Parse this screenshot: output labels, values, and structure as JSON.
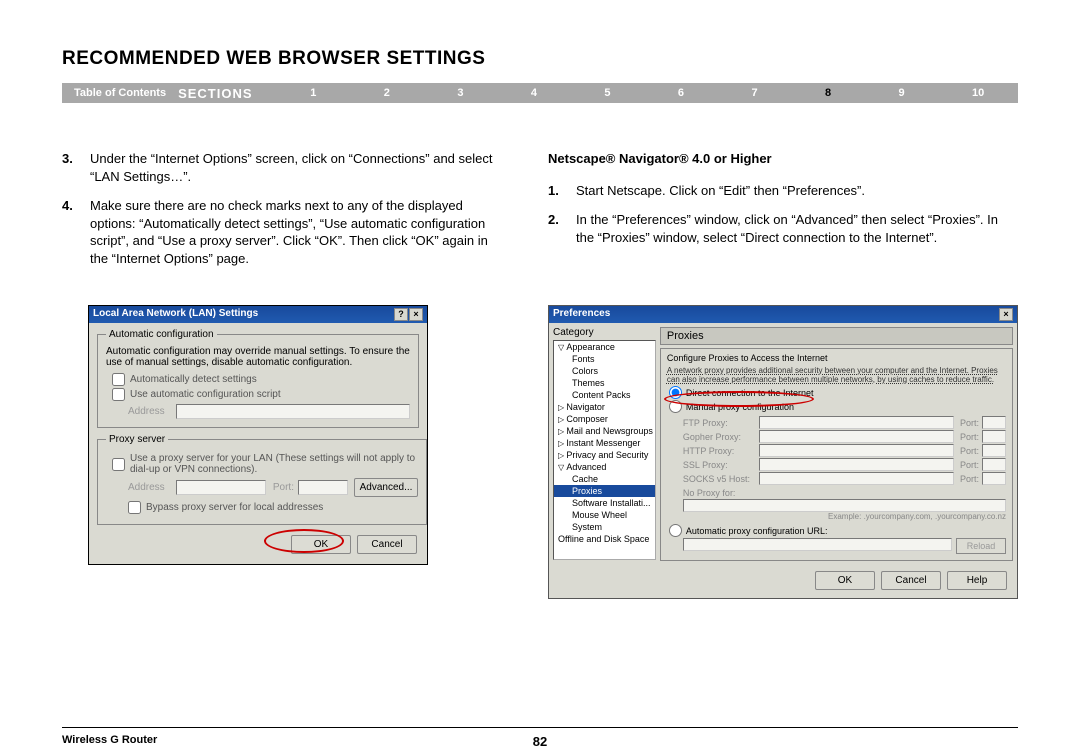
{
  "title": "RECOMMENDED WEB BROWSER SETTINGS",
  "nav": {
    "toc": "Table of Contents",
    "sections": "SECTIONS",
    "nums": [
      "1",
      "2",
      "3",
      "4",
      "5",
      "6",
      "7",
      "8",
      "9",
      "10"
    ],
    "active_index": 7
  },
  "left": {
    "items": [
      {
        "n": "3.",
        "t": "Under the “Internet Options” screen, click on “Connections” and select “LAN Settings…”."
      },
      {
        "n": "4.",
        "t": "Make sure there are no check marks next to any of the displayed options: “Automatically detect settings”, “Use automatic configuration script”, and “Use a proxy server”. Click “OK”. Then click “OK” again in the “Internet Options” page."
      }
    ]
  },
  "right": {
    "heading": "Netscape® Navigator® 4.0 or Higher",
    "items": [
      {
        "n": "1.",
        "t": "Start Netscape. Click on “Edit” then “Preferences”."
      },
      {
        "n": "2.",
        "t": "In the “Preferences” window, click on “Advanced” then select “Proxies”. In the “Proxies” window, select “Direct connection to the Internet”."
      }
    ]
  },
  "lan": {
    "title": "Local Area Network (LAN) Settings",
    "auto_legend": "Automatic configuration",
    "auto_desc": "Automatic configuration may override manual settings. To ensure the use of manual settings, disable automatic configuration.",
    "chk_detect": "Automatically detect settings",
    "chk_script": "Use automatic configuration script",
    "addr": "Address",
    "proxy_legend": "Proxy server",
    "proxy_desc": "Use a proxy server for your LAN (These settings will not apply to dial-up or VPN connections).",
    "port": "Port:",
    "advanced": "Advanced...",
    "bypass": "Bypass proxy server for local addresses",
    "ok": "OK",
    "cancel": "Cancel"
  },
  "pref": {
    "title": "Preferences",
    "category": "Category",
    "categories": [
      {
        "t": "Appearance",
        "c": "exp"
      },
      {
        "t": "Fonts",
        "c": "sub"
      },
      {
        "t": "Colors",
        "c": "sub"
      },
      {
        "t": "Themes",
        "c": "sub"
      },
      {
        "t": "Content Packs",
        "c": "sub"
      },
      {
        "t": "Navigator",
        "c": "col"
      },
      {
        "t": "Composer",
        "c": "col"
      },
      {
        "t": "Mail and Newsgroups",
        "c": "col"
      },
      {
        "t": "Instant Messenger",
        "c": "col"
      },
      {
        "t": "Privacy and Security",
        "c": "col"
      },
      {
        "t": "Advanced",
        "c": "exp"
      },
      {
        "t": "Cache",
        "c": "sub"
      },
      {
        "t": "Proxies",
        "c": "sub sel"
      },
      {
        "t": "Software Installati...",
        "c": "sub"
      },
      {
        "t": "Mouse Wheel",
        "c": "sub"
      },
      {
        "t": "System",
        "c": "sub"
      },
      {
        "t": "Offline and Disk Space",
        "c": ""
      }
    ],
    "panel_title": "Proxies",
    "conf_desc": "Configure Proxies to Access the Internet",
    "net_desc": "A network proxy provides additional security between your computer and the Internet. Proxies can also increase performance between multiple networks, by using caches to reduce traffic.",
    "r_direct": "Direct connection to the Internet",
    "r_manual": "Manual proxy configuration",
    "proxies": [
      {
        "l": "FTP Proxy:",
        "p": "Port:"
      },
      {
        "l": "Gopher Proxy:",
        "p": "Port:"
      },
      {
        "l": "HTTP Proxy:",
        "p": "Port:"
      },
      {
        "l": "SSL Proxy:",
        "p": "Port:"
      },
      {
        "l": "SOCKS v5 Host:",
        "p": "Port:"
      }
    ],
    "noproxy": "No Proxy for:",
    "noproxy_ex": "Example: .yourcompany.com, .yourcompany.co.nz",
    "r_auto": "Automatic proxy configuration URL:",
    "reload": "Reload",
    "ok": "OK",
    "cancel": "Cancel",
    "help": "Help"
  },
  "footer": {
    "product": "Wireless G Router",
    "page": "82"
  },
  "colors": {
    "navbar": "#a8a8a8",
    "dialog_bg": "#dadad2",
    "titlebar": "#184a9c",
    "highlight_red": "#cc0000"
  }
}
